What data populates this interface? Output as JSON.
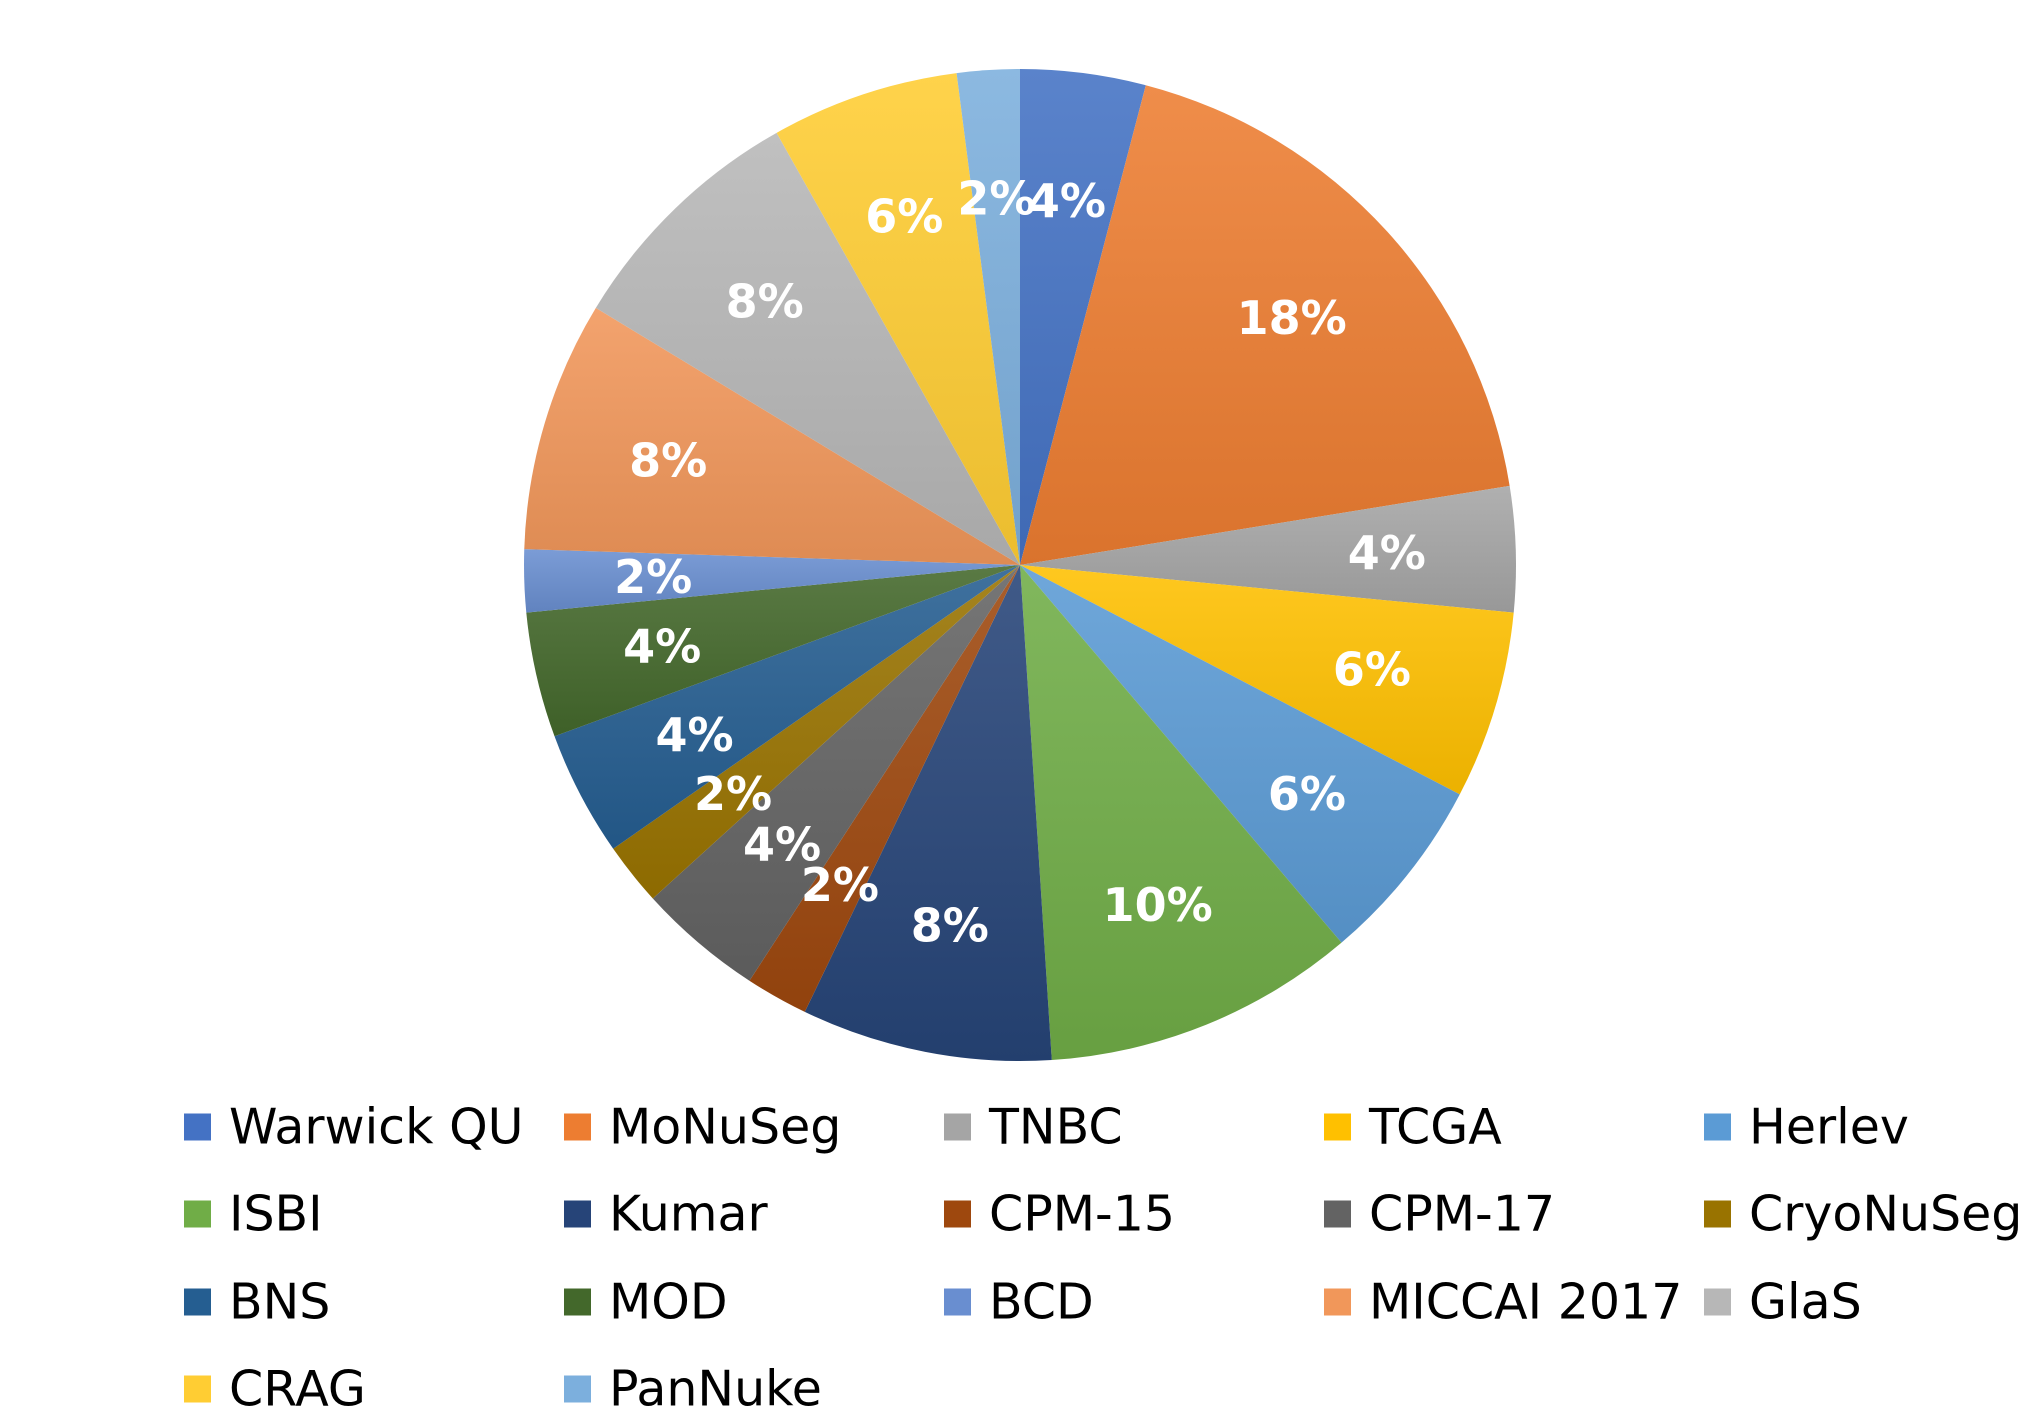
{
  "chart_data": {
    "type": "pie",
    "title": "",
    "legend_position": "bottom",
    "slices": [
      {
        "name": "Warwick QU",
        "value": 4,
        "label": "4%",
        "color": "#4472C4"
      },
      {
        "name": "MoNuSeg",
        "value": 18,
        "label": "18%",
        "color": "#ED7D31"
      },
      {
        "name": "TNBC",
        "value": 4,
        "label": "4%",
        "color": "#A5A5A5"
      },
      {
        "name": "TCGA",
        "value": 6,
        "label": "6%",
        "color": "#FFC000"
      },
      {
        "name": "Herlev",
        "value": 6,
        "label": "6%",
        "color": "#5B9BD5"
      },
      {
        "name": "ISBI",
        "value": 10,
        "label": "10%",
        "color": "#70AD47"
      },
      {
        "name": "Kumar",
        "value": 8,
        "label": "8%",
        "color": "#264478"
      },
      {
        "name": "CPM-15",
        "value": 2,
        "label": "2%",
        "color": "#9E480E"
      },
      {
        "name": "CPM-17",
        "value": 4,
        "label": "4%",
        "color": "#636363"
      },
      {
        "name": "CryoNuSeg",
        "value": 2,
        "label": "2%",
        "color": "#997300"
      },
      {
        "name": "BNS",
        "value": 4,
        "label": "4%",
        "color": "#255E91"
      },
      {
        "name": "MOD",
        "value": 4,
        "label": "4%",
        "color": "#43682B"
      },
      {
        "name": "BCD",
        "value": 2,
        "label": "2%",
        "color": "#698ED0"
      },
      {
        "name": "MICCAI 2017",
        "value": 8,
        "label": "8%",
        "color": "#F1975A"
      },
      {
        "name": "GlaS",
        "value": 8,
        "label": "8%",
        "color": "#B7B7B7"
      },
      {
        "name": "CRAG",
        "value": 6,
        "label": "6%",
        "color": "#FFCD33"
      },
      {
        "name": "PanNuke",
        "value": 2,
        "label": "2%",
        "color": "#7CAFDD"
      }
    ]
  }
}
